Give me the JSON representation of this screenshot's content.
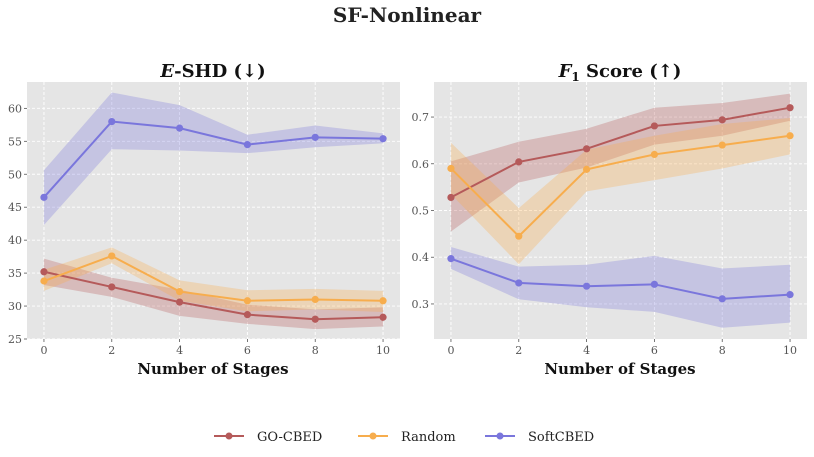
{
  "figure": {
    "title": "SF-Nonlinear"
  },
  "chart_data": [
    {
      "type": "line",
      "title": "E-SHD (↓)",
      "title_math": "E",
      "title_rest": "-SHD (↓)",
      "xlabel": "Number of Stages",
      "ylabel": "",
      "x": [
        0,
        2,
        4,
        6,
        8,
        10
      ],
      "xlim": [
        -0.5,
        10.5
      ],
      "ylim": [
        25,
        64
      ],
      "xticks": [
        0,
        2,
        4,
        6,
        8,
        10
      ],
      "yticks": [
        25,
        30,
        35,
        40,
        45,
        50,
        55,
        60
      ],
      "grid": true,
      "series": [
        {
          "name": "GO-CBED",
          "values": [
            35.2,
            32.9,
            30.6,
            28.7,
            28.0,
            28.3
          ],
          "lower": [
            33.2,
            31.4,
            28.5,
            27.3,
            26.5,
            26.9
          ],
          "upper": [
            37.2,
            34.3,
            32.5,
            30.2,
            29.5,
            29.8
          ]
        },
        {
          "name": "Random",
          "values": [
            33.8,
            37.6,
            32.2,
            30.8,
            31.0,
            30.8
          ],
          "lower": [
            32.3,
            36.5,
            30.8,
            29.2,
            29.5,
            29.1
          ],
          "upper": [
            35.5,
            38.9,
            33.9,
            32.4,
            32.6,
            32.3
          ]
        },
        {
          "name": "SoftCBED",
          "values": [
            46.5,
            58.0,
            57.0,
            54.5,
            55.6,
            55.4
          ],
          "lower": [
            42.3,
            53.8,
            53.6,
            53.2,
            54.1,
            54.7
          ],
          "upper": [
            50.6,
            62.4,
            60.5,
            56.0,
            57.4,
            56.2
          ]
        }
      ]
    },
    {
      "type": "line",
      "title": "F1 Score (↑)",
      "title_math": "F",
      "title_sub": "1",
      "title_rest": " Score (↑)",
      "xlabel": "Number of Stages",
      "ylabel": "",
      "x": [
        0,
        2,
        4,
        6,
        8,
        10
      ],
      "xlim": [
        -0.5,
        10.5
      ],
      "ylim": [
        0.225,
        0.775
      ],
      "xticks": [
        0,
        2,
        4,
        6,
        8,
        10
      ],
      "yticks": [
        0.3,
        0.4,
        0.5,
        0.6,
        0.7
      ],
      "grid": true,
      "series": [
        {
          "name": "GO-CBED",
          "values": [
            0.528,
            0.604,
            0.632,
            0.681,
            0.694,
            0.72
          ],
          "lower": [
            0.455,
            0.56,
            0.592,
            0.641,
            0.66,
            0.692
          ],
          "upper": [
            0.605,
            0.647,
            0.675,
            0.72,
            0.73,
            0.75
          ]
        },
        {
          "name": "Random",
          "values": [
            0.59,
            0.445,
            0.588,
            0.62,
            0.64,
            0.66
          ],
          "lower": [
            0.535,
            0.385,
            0.541,
            0.565,
            0.59,
            0.62
          ],
          "upper": [
            0.645,
            0.505,
            0.63,
            0.66,
            0.685,
            0.698
          ]
        },
        {
          "name": "SoftCBED",
          "values": [
            0.397,
            0.345,
            0.338,
            0.342,
            0.311,
            0.32
          ],
          "lower": [
            0.375,
            0.31,
            0.293,
            0.283,
            0.249,
            0.26
          ],
          "upper": [
            0.422,
            0.38,
            0.384,
            0.403,
            0.376,
            0.384
          ]
        }
      ]
    }
  ],
  "legend": {
    "entries": [
      {
        "name": "GO-CBED",
        "color": "#b55a5a"
      },
      {
        "name": "Random",
        "color": "#f7ad4d"
      },
      {
        "name": "SoftCBED",
        "color": "#7a76dc"
      }
    ]
  },
  "colors": {
    "GO-CBED": "#b55a5a",
    "Random": "#f7ad4d",
    "SoftCBED": "#7a76dc",
    "background": "#e5e5e5",
    "grid": "#ffffff"
  }
}
